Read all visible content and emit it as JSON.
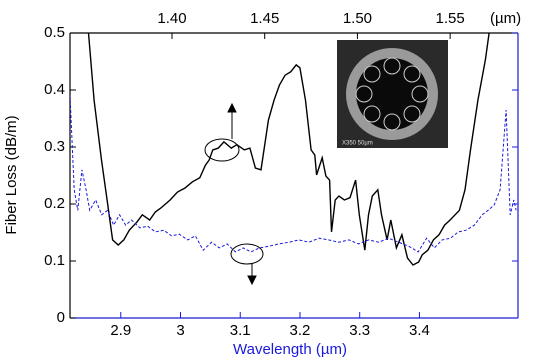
{
  "chart_data": {
    "type": "line",
    "xlabel": "Wavelength (µm)",
    "ylabel": "Fiber Loss (dB/m)",
    "x2label": "(µm)",
    "inset_label": "X350  50µm",
    "xlim": [
      2.815,
      3.565
    ],
    "xticks": [
      2.9,
      3.0,
      3.1,
      3.2,
      3.3,
      3.4
    ],
    "x2lim": [
      1.345,
      1.5866
    ],
    "x2ticks": [
      {
        "value": 1.4,
        "label": "1.40"
      },
      1.45,
      {
        "value": 1.5,
        "label": "1.50"
      },
      1.55
    ],
    "ylim": [
      0,
      0.5
    ],
    "yticks": [
      0,
      0.1,
      0.2,
      0.3,
      0.4,
      0.5
    ],
    "x_axis_color": "#1a1adc",
    "series": [
      {
        "color": "#000000",
        "dash": false,
        "xaxis": "x2",
        "x": [
          1.355,
          1.358,
          1.362,
          1.365,
          1.368,
          1.371,
          1.374,
          1.377,
          1.381,
          1.384,
          1.388,
          1.391,
          1.394,
          1.399,
          1.403,
          1.407,
          1.411,
          1.415,
          1.418,
          1.42,
          1.422,
          1.425,
          1.428,
          1.432,
          1.435,
          1.439,
          1.442,
          1.445,
          1.448,
          1.452,
          1.455,
          1.458,
          1.461,
          1.464,
          1.467,
          1.469,
          1.472,
          1.475,
          1.477,
          1.478,
          1.481,
          1.483,
          1.485,
          1.486,
          1.488,
          1.49,
          1.493,
          1.496,
          1.499,
          1.501,
          1.504,
          1.506,
          1.508,
          1.511,
          1.513,
          1.516,
          1.518,
          1.521,
          1.524,
          1.527,
          1.53,
          1.533,
          1.535,
          1.538,
          1.541,
          1.544,
          1.547,
          1.55,
          1.555,
          1.558,
          1.561,
          1.565,
          1.569,
          1.571
        ],
        "values": [
          0.5,
          0.382,
          0.277,
          0.207,
          0.137,
          0.128,
          0.137,
          0.154,
          0.168,
          0.181,
          0.172,
          0.186,
          0.193,
          0.207,
          0.221,
          0.228,
          0.239,
          0.246,
          0.268,
          0.277,
          0.295,
          0.298,
          0.309,
          0.298,
          0.304,
          0.295,
          0.298,
          0.263,
          0.26,
          0.347,
          0.382,
          0.409,
          0.426,
          0.432,
          0.444,
          0.439,
          0.382,
          0.295,
          0.286,
          0.251,
          0.281,
          0.249,
          0.242,
          0.151,
          0.207,
          0.214,
          0.207,
          0.211,
          0.242,
          0.181,
          0.119,
          0.181,
          0.214,
          0.225,
          0.181,
          0.137,
          0.172,
          0.123,
          0.146,
          0.105,
          0.093,
          0.098,
          0.111,
          0.119,
          0.137,
          0.146,
          0.163,
          0.172,
          0.189,
          0.225,
          0.295,
          0.382,
          0.453,
          0.5
        ]
      },
      {
        "color": "#1a1adc",
        "dash": true,
        "xaxis": "x",
        "x": [
          2.815,
          2.822,
          2.828,
          2.835,
          2.842,
          2.848,
          2.858,
          2.868,
          2.878,
          2.888,
          2.898,
          2.908,
          2.918,
          2.932,
          2.945,
          2.958,
          2.972,
          2.985,
          2.998,
          3.012,
          3.025,
          3.038,
          3.052,
          3.065,
          3.078,
          3.092,
          3.105,
          3.118,
          3.132,
          3.148,
          3.165,
          3.182,
          3.198,
          3.215,
          3.232,
          3.248,
          3.265,
          3.282,
          3.298,
          3.315,
          3.332,
          3.348,
          3.365,
          3.382,
          3.398,
          3.412,
          3.425,
          3.438,
          3.452,
          3.465,
          3.478,
          3.492,
          3.505,
          3.515,
          3.525,
          3.535,
          3.545,
          3.552,
          3.558,
          3.562
        ],
        "values": [
          0.391,
          0.225,
          0.189,
          0.26,
          0.225,
          0.189,
          0.207,
          0.181,
          0.189,
          0.163,
          0.181,
          0.163,
          0.172,
          0.158,
          0.161,
          0.151,
          0.154,
          0.144,
          0.147,
          0.137,
          0.144,
          0.119,
          0.133,
          0.123,
          0.13,
          0.116,
          0.123,
          0.116,
          0.123,
          0.126,
          0.13,
          0.133,
          0.137,
          0.133,
          0.14,
          0.137,
          0.133,
          0.137,
          0.13,
          0.137,
          0.133,
          0.14,
          0.133,
          0.126,
          0.116,
          0.14,
          0.123,
          0.137,
          0.14,
          0.151,
          0.154,
          0.163,
          0.181,
          0.189,
          0.198,
          0.225,
          0.365,
          0.181,
          0.207,
          0.189
        ]
      }
    ]
  }
}
